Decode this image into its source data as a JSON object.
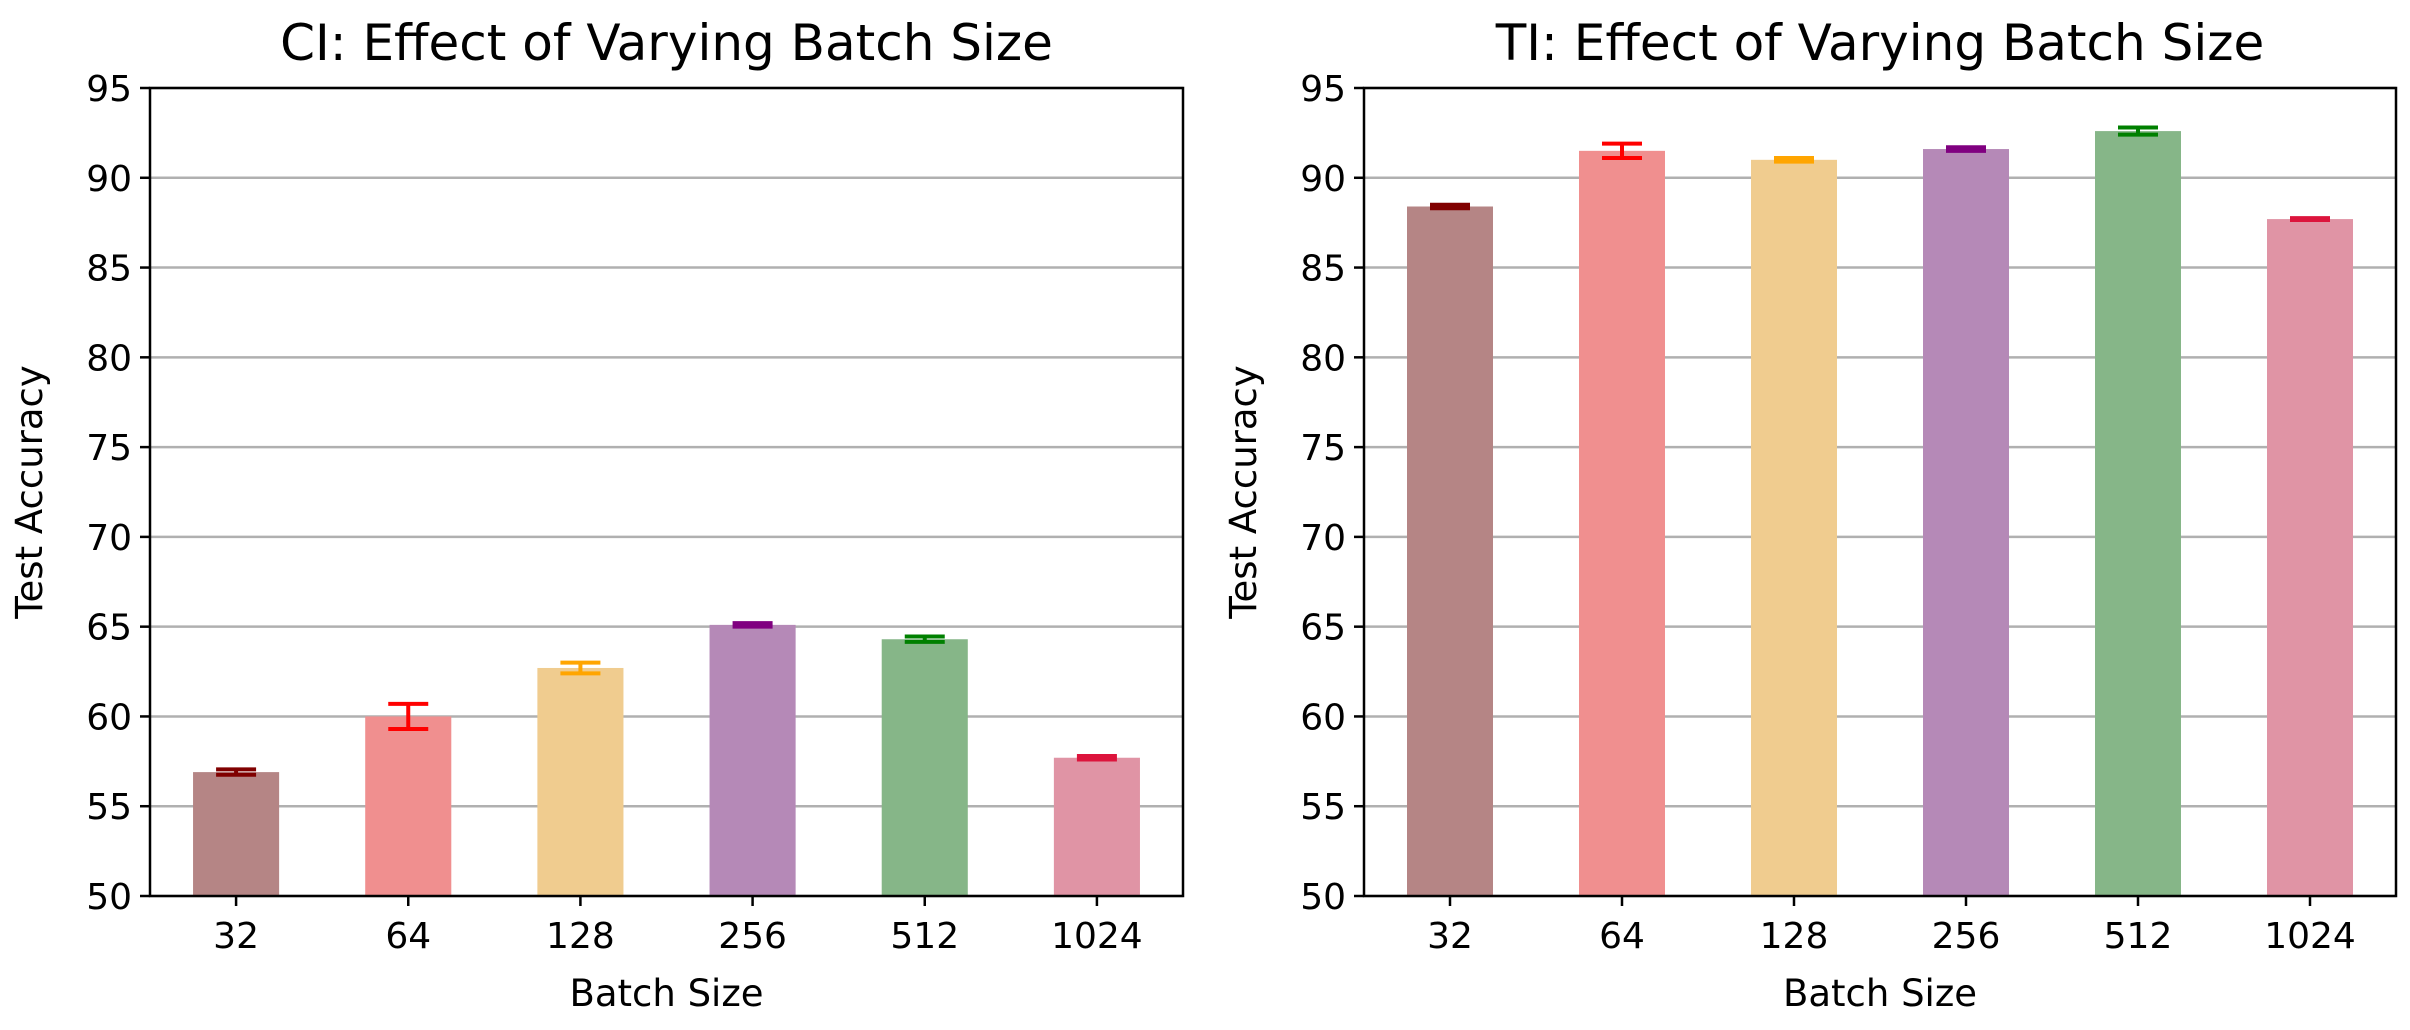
{
  "chart_data": [
    {
      "type": "bar",
      "title": "CI: Effect of Varying Batch Size",
      "xlabel": "Batch Size",
      "ylabel": "Test Accuracy",
      "ylim": [
        50,
        95
      ],
      "yticks": [
        50,
        55,
        60,
        65,
        70,
        75,
        80,
        85,
        90,
        95
      ],
      "grid": "y",
      "categories": [
        "32",
        "64",
        "128",
        "256",
        "512",
        "1024"
      ],
      "values": [
        56.9,
        60.0,
        62.7,
        65.1,
        64.3,
        57.7
      ],
      "errors": [
        0.15,
        0.7,
        0.3,
        0.1,
        0.15,
        0.1
      ],
      "bar_colors": [
        "#b58585",
        "#f08f8f",
        "#f0cc8f",
        "#b589b7",
        "#86b688",
        "#e094a5"
      ],
      "error_colors": [
        "#800000",
        "#ff0000",
        "#ffa500",
        "#800080",
        "#008000",
        "#dc143c"
      ]
    },
    {
      "type": "bar",
      "title": "TI: Effect of Varying Batch Size",
      "xlabel": "Batch Size",
      "ylabel": "Test Accuracy",
      "ylim": [
        50,
        95
      ],
      "yticks": [
        50,
        55,
        60,
        65,
        70,
        75,
        80,
        85,
        90,
        95
      ],
      "grid": "y",
      "categories": [
        "32",
        "64",
        "128",
        "256",
        "512",
        "1024"
      ],
      "values": [
        88.4,
        91.5,
        91.0,
        91.6,
        92.6,
        87.7
      ],
      "errors": [
        0.1,
        0.4,
        0.1,
        0.1,
        0.2,
        0.05
      ],
      "bar_colors": [
        "#b58585",
        "#f08f8f",
        "#f0cc8f",
        "#b589b7",
        "#86b688",
        "#e094a5"
      ],
      "error_colors": [
        "#800000",
        "#ff0000",
        "#ffa500",
        "#800080",
        "#008000",
        "#dc143c"
      ]
    }
  ]
}
